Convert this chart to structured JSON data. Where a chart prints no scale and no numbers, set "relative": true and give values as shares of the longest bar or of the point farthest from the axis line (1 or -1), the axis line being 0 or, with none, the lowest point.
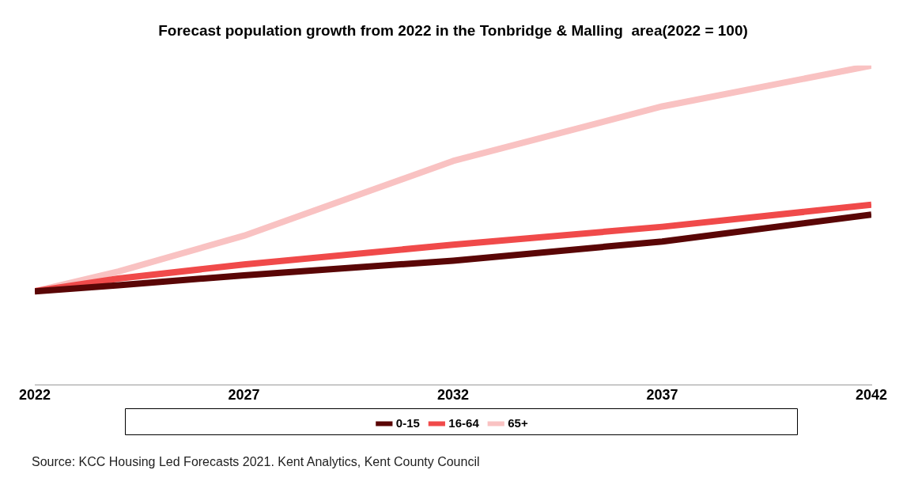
{
  "chart_data": {
    "type": "line",
    "title": "Forecast population growth from 2022 in the Tonbridge & Malling  area(2022 = 100)",
    "relative": true,
    "x": [
      2022,
      2024,
      2027,
      2032,
      2037,
      2042
    ],
    "xlim": [
      2022,
      2042
    ],
    "xticks": [
      2022,
      2027,
      2032,
      2037,
      2042
    ],
    "grid": false,
    "legend": "bottom",
    "marker": "none",
    "line_style": "solid",
    "series": [
      {
        "name": "0-15",
        "color": "#5a0606",
        "values": [
          0.293,
          0.312,
          0.343,
          0.389,
          0.449,
          0.533
        ]
      },
      {
        "name": "16-64",
        "color": "#f04a4a",
        "values": [
          0.293,
          0.333,
          0.377,
          0.439,
          0.495,
          0.564
        ]
      },
      {
        "name": "65+",
        "color": "#f9c2c2",
        "values": [
          0.293,
          0.355,
          0.467,
          0.701,
          0.872,
          1
        ]
      }
    ],
    "annotations": [
      "Source: KCC Housing Led Forecasts 2021. Kent Analytics, Kent County Council"
    ]
  }
}
